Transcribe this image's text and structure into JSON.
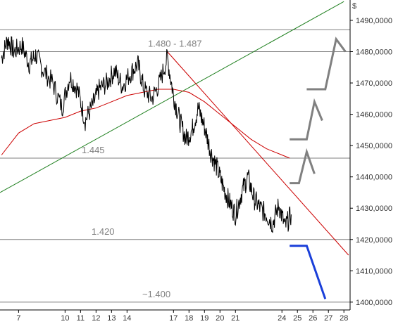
{
  "chart_data": {
    "type": "line",
    "title": "",
    "xlabel": "",
    "ylabel": "",
    "currency_symbol": "$",
    "ylim": [
      1397.5,
      1496.5
    ],
    "yticks": [
      1400,
      1410,
      1420,
      1430,
      1440,
      1450,
      1460,
      1470,
      1480,
      1490
    ],
    "ytick_labels": [
      "1400,0000",
      "1410,0000",
      "1420,0000",
      "1430,0000",
      "1440,0000",
      "1450,0000",
      "1460,0000",
      "1470,0000",
      "1480,0000",
      "1490,0000"
    ],
    "xlim": [
      5.8,
      28.4
    ],
    "xticks": [
      7,
      10,
      11,
      12,
      13,
      14,
      17,
      18,
      19,
      20,
      21,
      24,
      25,
      26,
      27,
      28
    ],
    "xtick_labels": [
      "7",
      "10",
      "11",
      "12",
      "13",
      "14",
      "17",
      "18",
      "19",
      "20",
      "21",
      "24",
      "25",
      "26",
      "27",
      "28"
    ],
    "grid": false,
    "legend": "none",
    "horizontal_levels": [
      {
        "value": 1487,
        "label": ""
      },
      {
        "value": 1480,
        "label": "1.480 - 1.487"
      },
      {
        "value": 1446,
        "label": "1.445"
      },
      {
        "value": 1420,
        "label": "1.420"
      },
      {
        "value": 1400,
        "label": "~1.400"
      }
    ],
    "price_series": {
      "color": "#000000",
      "x": [
        5.9,
        6.3,
        6.7,
        7.2,
        7.7,
        8.1,
        8.6,
        9.2,
        9.8,
        10.3,
        10.8,
        11.3,
        11.8,
        12.2,
        12.7,
        13.2,
        13.7,
        14.2,
        14.7,
        15.1,
        15.6,
        16.1,
        16.6,
        17.0,
        17.4,
        17.8,
        18.2,
        18.6,
        19.0,
        19.4,
        19.8,
        20.2,
        20.6,
        21.0,
        21.4,
        21.8,
        22.2,
        22.6,
        23.0,
        23.4,
        23.8,
        24.2,
        24.6
      ],
      "y": [
        1478,
        1484,
        1480,
        1482,
        1476,
        1479,
        1474,
        1470,
        1462,
        1472,
        1468,
        1458,
        1463,
        1468,
        1470,
        1474,
        1469,
        1473,
        1476,
        1468,
        1465,
        1470,
        1478,
        1466,
        1458,
        1452,
        1455,
        1462,
        1456,
        1448,
        1443,
        1437,
        1432,
        1428,
        1435,
        1440,
        1433,
        1430,
        1428,
        1425,
        1431,
        1424,
        1428
      ]
    },
    "moving_average": {
      "color": "#cc0000",
      "x": [
        5.9,
        7,
        8,
        9,
        10,
        11,
        12,
        13,
        14,
        15,
        16,
        17,
        18,
        19,
        20,
        21,
        22,
        23,
        24,
        24.5
      ],
      "y": [
        1447,
        1454,
        1457,
        1458,
        1459,
        1461,
        1462,
        1464,
        1466,
        1467,
        1468,
        1468,
        1467,
        1464,
        1460,
        1456,
        1452,
        1449,
        1447,
        1446
      ]
    },
    "trendlines": [
      {
        "name": "",
        "color": "#208020",
        "x": [
          5.8,
          28.0
        ],
        "y": [
          1435,
          1496
        ]
      },
      {
        "name": "",
        "color": "#cc0000",
        "x": [
          16.6,
          28.3
        ],
        "y": [
          1480,
          1415
        ]
      }
    ],
    "projections": [
      {
        "color": "#808080",
        "x": [
          24.5,
          25.1,
          25.6,
          26.1
        ],
        "y": [
          1438,
          1438,
          1448,
          1441
        ]
      },
      {
        "color": "#808080",
        "x": [
          24.5,
          25.6,
          26.1,
          26.6
        ],
        "y": [
          1452,
          1452,
          1464,
          1458
        ]
      },
      {
        "color": "#808080",
        "x": [
          25.6,
          26.8,
          27.5,
          28.1
        ],
        "y": [
          1468,
          1468,
          1484,
          1480
        ]
      },
      {
        "color": "#1a3fd9",
        "x": [
          24.5,
          25.6,
          26.8
        ],
        "y": [
          1418,
          1418,
          1401
        ]
      }
    ]
  }
}
